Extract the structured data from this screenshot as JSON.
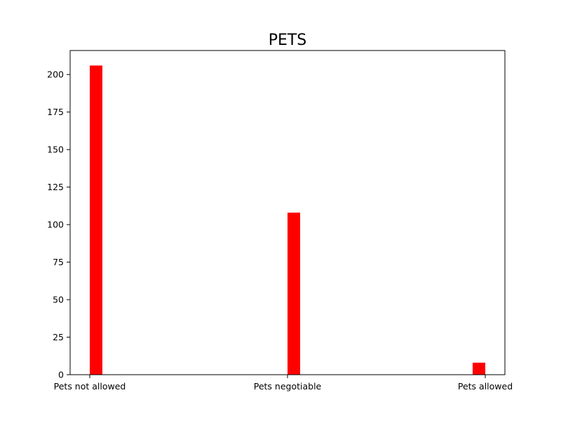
{
  "chart_data": {
    "type": "bar",
    "title": "PETS",
    "xlabel": "",
    "ylabel": "",
    "categories": [
      "Pets not allowed",
      "Pets negotiable",
      "Pets allowed"
    ],
    "values": [
      206,
      108,
      8
    ],
    "ylim": [
      0,
      216
    ],
    "yticks": [
      0,
      25,
      50,
      75,
      100,
      125,
      150,
      175,
      200
    ],
    "bar_color": "#ff0000",
    "grid": false,
    "legend": "none"
  }
}
